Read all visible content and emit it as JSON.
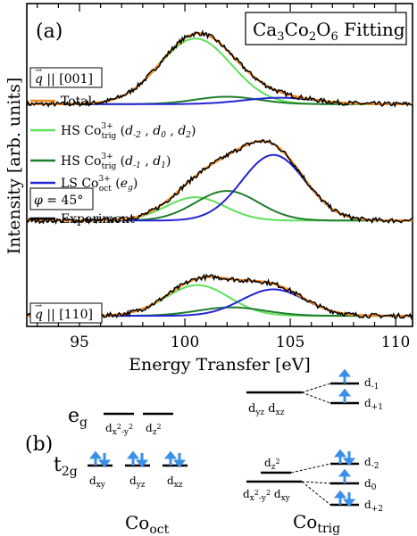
{
  "chart_data": {
    "type": "line",
    "panel_label": "(a)",
    "title": "Ca3Co2O6 Fitting",
    "xlabel": "Energy Transfer [eV]",
    "ylabel": "Intensity [arb. units]",
    "xlim": [
      92.5,
      110.8
    ],
    "x_ticks": [
      "95",
      "100",
      "105",
      "110"
    ],
    "grid": false,
    "legend": {
      "placement": "middle-left",
      "entries": [
        {
          "name": "Total",
          "color": "#f08a24"
        },
        {
          "name": "HS Co3+trig (d-2 , d0 , d2)",
          "color": "#5fe05a"
        },
        {
          "name": "HS Co3+trig (d-1 , d1)",
          "color": "#1e7d2a"
        },
        {
          "name": "LS Co3+oct (eg)",
          "color": "#2424d6"
        },
        {
          "name": "Experiment",
          "color": "#000000"
        }
      ]
    },
    "panels": [
      {
        "label": "q || [001]",
        "offset": 2.0,
        "components": [
          {
            "name": "HS Co3+trig (d-2 , d0 , d2)",
            "center": 100.5,
            "width": 1.7,
            "amplitude": 0.62
          },
          {
            "name": "HS Co3+trig (d-1 , d1)",
            "center": 102.0,
            "width": 1.5,
            "amplitude": 0.07
          },
          {
            "name": "LS Co3+oct (eg)",
            "center": 104.5,
            "width": 1.7,
            "amplitude": 0.06
          }
        ]
      },
      {
        "label": "φ = 45°",
        "offset": 0.9,
        "components": [
          {
            "name": "HS Co3+trig (d-2 , d0 , d2)",
            "center": 100.5,
            "width": 1.4,
            "amplitude": 0.22
          },
          {
            "name": "HS Co3+trig (d-1 , d1)",
            "center": 102.0,
            "width": 1.5,
            "amplitude": 0.28
          },
          {
            "name": "LS Co3+oct (eg)",
            "center": 104.2,
            "width": 1.5,
            "amplitude": 0.62
          }
        ]
      },
      {
        "label": "q || [110]",
        "offset": 0.0,
        "components": [
          {
            "name": "HS Co3+trig (d-2 , d0 , d2)",
            "center": 100.6,
            "width": 1.5,
            "amplitude": 0.29
          },
          {
            "name": "HS Co3+trig (d-1 , d1)",
            "center": 102.2,
            "width": 1.6,
            "amplitude": 0.08
          },
          {
            "name": "LS Co3+oct (eg)",
            "center": 104.2,
            "width": 1.5,
            "amplitude": 0.25
          }
        ]
      }
    ]
  },
  "schematic": {
    "panel_label": "(b)",
    "oct": {
      "eg": "e",
      "eg_sub": "g",
      "t2g": "t",
      "t2g_sub": "2g",
      "eg_orbitals": [
        "dx²-y²",
        "dz²"
      ],
      "t2g_orbitals": [
        "dxy",
        "dyz",
        "dxz"
      ],
      "name": "Co",
      "name_sub": "oct"
    },
    "trig": {
      "upper_pair": "dyz  dxz",
      "middle": "dz²",
      "lower_pair": "dx²-y² dxy",
      "upper_levels": [
        "d-1",
        "d+1"
      ],
      "lower_levels": [
        "d-2",
        "d0",
        "d+2"
      ],
      "name": "Co",
      "name_sub": "trig"
    }
  },
  "colors": {
    "total": "#f08a24",
    "hs_trig_a": "#5fe05a",
    "hs_trig_b": "#1e7d2a",
    "ls_oct": "#2424d6",
    "experiment": "#000000",
    "arrow": "#3b8fe8"
  }
}
